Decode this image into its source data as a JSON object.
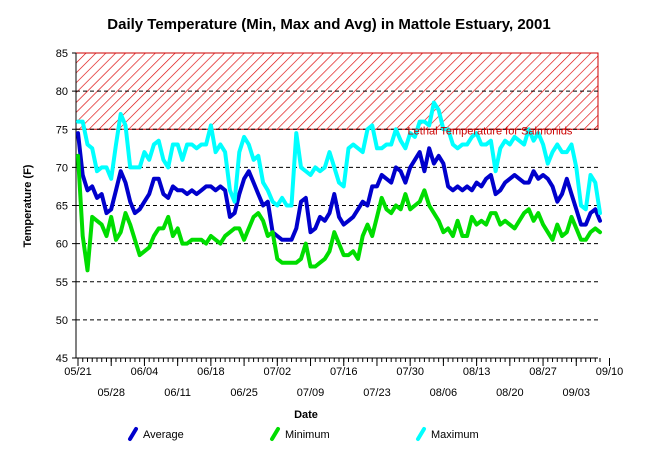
{
  "chart_data": {
    "type": "line",
    "title": "Daily Temperature (Min, Max and Avg) in Mattole Estuary, 2001",
    "xlabel": "Date",
    "ylabel": "Temperature (F)",
    "ylim": [
      45,
      85
    ],
    "yticks": [
      45,
      50,
      55,
      60,
      65,
      70,
      75,
      80,
      85
    ],
    "x_start": "05/21",
    "x_tick_labels_top": [
      "05/21",
      "06/04",
      "06/18",
      "07/02",
      "07/16",
      "07/30",
      "08/13",
      "08/27",
      "09/10"
    ],
    "x_tick_labels_bottom": [
      "05/28",
      "06/11",
      "06/25",
      "07/09",
      "07/23",
      "08/06",
      "08/20",
      "09/03"
    ],
    "x_tick_day_offsets_top": [
      0,
      14,
      28,
      42,
      56,
      70,
      84,
      98,
      112
    ],
    "x_tick_day_offsets_bottom": [
      7,
      21,
      35,
      49,
      63,
      77,
      91,
      105
    ],
    "grid": "horizontal dashed",
    "legend_position": "bottom",
    "annotation": {
      "text": "Lethal Temperature for Salmonids",
      "y_from": 75,
      "y_to": 85,
      "color": "#cc0000"
    },
    "series": [
      {
        "name": "Average",
        "color": "#0000cc",
        "values": [
          74.5,
          69.0,
          67.0,
          67.5,
          66.0,
          66.5,
          64.0,
          64.5,
          67.0,
          69.5,
          68.0,
          65.5,
          64.0,
          64.5,
          65.5,
          66.5,
          68.5,
          68.5,
          66.5,
          66.0,
          67.5,
          67.0,
          67.0,
          66.5,
          67.0,
          66.5,
          67.0,
          67.5,
          67.5,
          67.0,
          67.5,
          67.0,
          63.5,
          64.0,
          66.5,
          68.5,
          69.5,
          68.0,
          66.5,
          65.0,
          65.5,
          61.5,
          61.0,
          60.5,
          60.5,
          60.5,
          62.0,
          65.5,
          66.0,
          61.5,
          62.0,
          63.5,
          63.0,
          64.0,
          66.5,
          63.5,
          62.5,
          63.0,
          63.5,
          64.5,
          65.5,
          65.0,
          67.5,
          67.5,
          69.0,
          68.5,
          68.0,
          70.0,
          69.5,
          68.0,
          70.0,
          71.0,
          72.0,
          69.5,
          72.5,
          70.5,
          71.5,
          70.5,
          67.5,
          67.0,
          67.5,
          67.0,
          67.5,
          67.0,
          68.0,
          67.5,
          68.5,
          69.0,
          66.5,
          67.0,
          68.0,
          68.5,
          69.0,
          68.5,
          68.0,
          68.0,
          69.5,
          68.5,
          69.0,
          68.5,
          67.5,
          65.5,
          66.5,
          68.5,
          66.5,
          64.5,
          62.5,
          62.5,
          64.0,
          64.5,
          63.0
        ],
        "point_count": 111
      },
      {
        "name": "Minimum",
        "color": "#00dd00",
        "values": [
          71.5,
          61.0,
          56.5,
          63.5,
          63.0,
          62.5,
          61.0,
          63.5,
          60.5,
          61.5,
          64.0,
          62.5,
          60.5,
          58.5,
          59.0,
          59.5,
          61.0,
          62.0,
          62.0,
          63.5,
          61.0,
          62.0,
          60.0,
          60.0,
          60.5,
          60.5,
          60.5,
          60.0,
          61.0,
          60.5,
          60.0,
          61.0,
          61.5,
          62.0,
          62.0,
          60.5,
          62.0,
          63.5,
          64.0,
          63.0,
          61.0,
          61.5,
          58.0,
          57.5,
          57.5,
          57.5,
          57.5,
          58.0,
          60.0,
          57.0,
          57.0,
          57.5,
          58.0,
          59.0,
          61.5,
          60.0,
          58.5,
          58.5,
          59.0,
          58.0,
          61.0,
          62.5,
          61.0,
          63.5,
          66.0,
          64.5,
          64.0,
          65.0,
          64.5,
          66.5,
          64.5,
          65.0,
          65.5,
          67.0,
          65.0,
          64.0,
          63.0,
          61.5,
          62.0,
          61.0,
          63.0,
          61.0,
          61.0,
          63.5,
          62.5,
          63.0,
          62.5,
          64.0,
          64.0,
          62.5,
          63.0,
          62.5,
          62.0,
          63.0,
          64.0,
          64.5,
          63.0,
          64.0,
          62.5,
          61.5,
          60.5,
          62.5,
          61.0,
          61.5,
          63.5,
          62.0,
          60.5,
          60.5,
          61.5,
          62.0,
          61.5
        ],
        "point_count": 111
      },
      {
        "name": "Maximum",
        "color": "#00ffff",
        "values": [
          76.0,
          76.0,
          73.0,
          72.5,
          69.5,
          70.0,
          70.0,
          68.5,
          73.0,
          77.0,
          75.5,
          70.0,
          70.0,
          70.0,
          72.0,
          71.0,
          73.0,
          73.5,
          71.0,
          70.0,
          73.0,
          73.0,
          71.0,
          73.0,
          73.0,
          72.5,
          73.0,
          73.0,
          75.5,
          72.0,
          73.0,
          72.0,
          67.0,
          65.5,
          72.0,
          74.0,
          73.0,
          71.0,
          71.5,
          68.0,
          67.0,
          65.5,
          65.0,
          66.0,
          65.0,
          65.0,
          74.5,
          70.0,
          69.5,
          69.0,
          70.0,
          69.5,
          70.0,
          72.0,
          70.0,
          68.0,
          67.5,
          72.5,
          73.0,
          72.5,
          72.0,
          75.0,
          75.5,
          72.5,
          72.5,
          73.0,
          73.0,
          75.0,
          73.5,
          72.5,
          74.5,
          74.0,
          76.0,
          76.0,
          75.5,
          78.5,
          77.5,
          75.0,
          75.0,
          73.0,
          72.5,
          73.0,
          73.0,
          74.0,
          74.5,
          73.0,
          73.0,
          73.5,
          69.5,
          72.5,
          73.5,
          73.0,
          74.0,
          73.5,
          73.0,
          75.0,
          73.5,
          74.5,
          73.0,
          70.5,
          72.0,
          73.0,
          72.0,
          72.0,
          73.0,
          70.0,
          65.0,
          64.5,
          69.0,
          68.0,
          64.0
        ],
        "point_count": 111
      }
    ]
  }
}
